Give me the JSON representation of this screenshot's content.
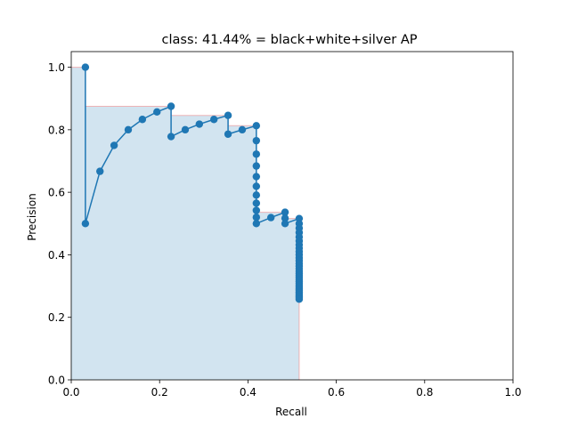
{
  "chart_data": {
    "type": "line",
    "title": "class: 41.44% = black+white+silver AP",
    "xlabel": "Recall",
    "ylabel": "Precision",
    "xlim": [
      0,
      1
    ],
    "ylim": [
      0,
      1.05
    ],
    "xticks": [
      0.0,
      0.2,
      0.4,
      0.6,
      0.8,
      1.0
    ],
    "yticks": [
      0.0,
      0.2,
      0.4,
      0.6,
      0.8,
      1.0
    ],
    "xtick_labels": [
      "0.0",
      "0.2",
      "0.4",
      "0.6",
      "0.8",
      "1.0"
    ],
    "ytick_labels": [
      "0.0",
      "0.2",
      "0.4",
      "0.6",
      "0.8",
      "1.0"
    ],
    "grid": false,
    "colors": {
      "line": "#1f77b4",
      "fill": "#1f77b4",
      "fill_opacity": 0.2,
      "envelope_edge": "#f08080"
    },
    "series": [
      {
        "values": [
          [
            0.032,
            1.0
          ],
          [
            0.032,
            0.5
          ],
          [
            0.065,
            0.667
          ],
          [
            0.097,
            0.75
          ],
          [
            0.129,
            0.8
          ],
          [
            0.161,
            0.833
          ],
          [
            0.194,
            0.857
          ],
          [
            0.226,
            0.875
          ],
          [
            0.226,
            0.778
          ],
          [
            0.258,
            0.8
          ],
          [
            0.29,
            0.818
          ],
          [
            0.323,
            0.833
          ],
          [
            0.355,
            0.846
          ],
          [
            0.355,
            0.786
          ],
          [
            0.387,
            0.8
          ],
          [
            0.419,
            0.813
          ],
          [
            0.419,
            0.765
          ],
          [
            0.419,
            0.722
          ],
          [
            0.419,
            0.684
          ],
          [
            0.419,
            0.65
          ],
          [
            0.419,
            0.619
          ],
          [
            0.419,
            0.591
          ],
          [
            0.419,
            0.565
          ],
          [
            0.419,
            0.542
          ],
          [
            0.419,
            0.52
          ],
          [
            0.419,
            0.5
          ],
          [
            0.452,
            0.519
          ],
          [
            0.484,
            0.536
          ],
          [
            0.484,
            0.517
          ],
          [
            0.484,
            0.5
          ],
          [
            0.516,
            0.516
          ],
          [
            0.516,
            0.5
          ],
          [
            0.516,
            0.485
          ],
          [
            0.516,
            0.471
          ],
          [
            0.516,
            0.457
          ],
          [
            0.516,
            0.444
          ],
          [
            0.516,
            0.432
          ],
          [
            0.516,
            0.421
          ],
          [
            0.516,
            0.41
          ],
          [
            0.516,
            0.4
          ],
          [
            0.516,
            0.39
          ],
          [
            0.516,
            0.381
          ],
          [
            0.516,
            0.372
          ],
          [
            0.516,
            0.364
          ],
          [
            0.516,
            0.356
          ],
          [
            0.516,
            0.348
          ],
          [
            0.516,
            0.34
          ],
          [
            0.516,
            0.333
          ],
          [
            0.516,
            0.327
          ],
          [
            0.516,
            0.32
          ],
          [
            0.516,
            0.314
          ],
          [
            0.516,
            0.308
          ],
          [
            0.516,
            0.302
          ],
          [
            0.516,
            0.296
          ],
          [
            0.516,
            0.291
          ],
          [
            0.516,
            0.286
          ],
          [
            0.516,
            0.281
          ],
          [
            0.516,
            0.276
          ],
          [
            0.516,
            0.271
          ],
          [
            0.516,
            0.267
          ],
          [
            0.516,
            0.262
          ],
          [
            0.516,
            0.258
          ]
        ]
      }
    ],
    "interpolated_precision": [
      [
        0.0,
        1.0
      ],
      [
        0.032,
        1.0
      ],
      [
        0.032,
        0.875
      ],
      [
        0.226,
        0.875
      ],
      [
        0.226,
        0.846
      ],
      [
        0.355,
        0.846
      ],
      [
        0.355,
        0.813
      ],
      [
        0.419,
        0.813
      ],
      [
        0.419,
        0.536
      ],
      [
        0.484,
        0.536
      ],
      [
        0.484,
        0.516
      ],
      [
        0.516,
        0.516
      ],
      [
        0.516,
        0.0
      ]
    ]
  }
}
